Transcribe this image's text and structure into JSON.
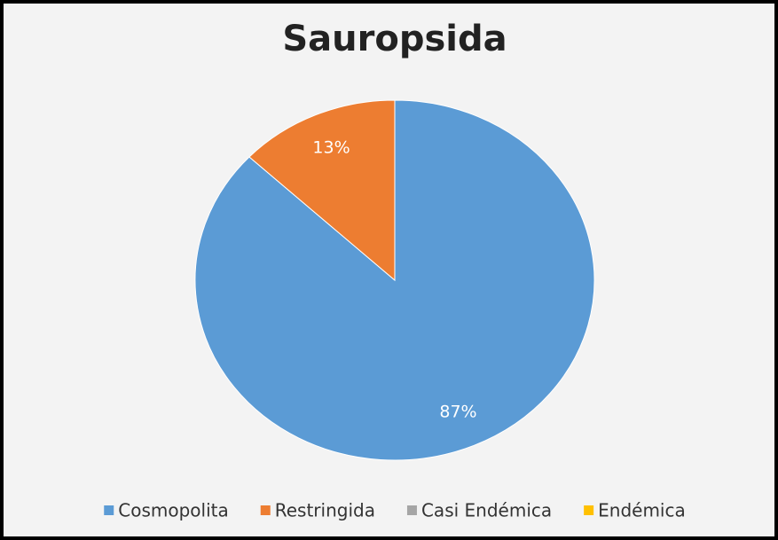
{
  "chart_data": {
    "type": "pie",
    "title": "Sauropsida",
    "categories": [
      "Cosmopolita",
      "Restringida",
      "Casi Endémica",
      "Endémica"
    ],
    "values": [
      87,
      13,
      0,
      0
    ],
    "value_labels": [
      "87%",
      "13%",
      null,
      null
    ],
    "colors": [
      "#5b9bd5",
      "#ed7d31",
      "#a5a5a5",
      "#ffc000"
    ],
    "legend": "bottom"
  }
}
